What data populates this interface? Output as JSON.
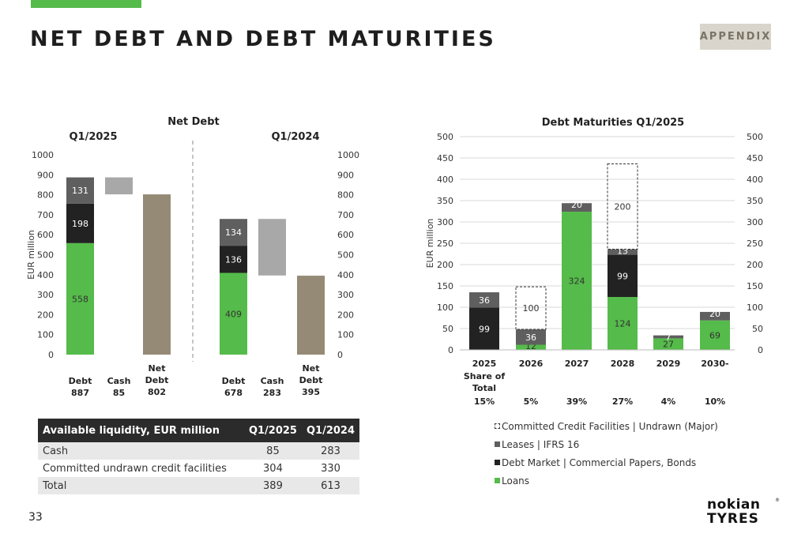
{
  "header": {
    "title": "NET DEBT AND DEBT MATURITIES",
    "badge": "APPENDIX"
  },
  "page_number": "33",
  "colors": {
    "loans": "#55bb4a",
    "debt_market": "#222222",
    "leases": "#5f5f5f",
    "cash": "#a8a8a8",
    "net_debt": "#958a75",
    "accent": "#55bb4a"
  },
  "liquidity_table": {
    "headers": [
      "Available liquidity, EUR million",
      "Q1/2025",
      "Q1/2024"
    ],
    "rows": [
      [
        "Cash",
        "85",
        "283"
      ],
      [
        "Committed undrawn credit facilities",
        "304",
        "330"
      ],
      [
        "Total",
        "389",
        "613"
      ]
    ]
  },
  "legend": [
    {
      "label": "Committed Credit Facilities | Undrawn (Major)",
      "style": "dashed"
    },
    {
      "label": "Leases | IFRS 16",
      "color": "#5f5f5f"
    },
    {
      "label": "Debt Market | Commercial Papers, Bonds",
      "color": "#222222"
    },
    {
      "label": "Loans",
      "color": "#55bb4a"
    }
  ],
  "logo": {
    "line1": "nokian",
    "line2": "TYRES"
  },
  "chart_data": [
    {
      "type": "bar",
      "title": "Net Debt",
      "ylabel": "EUR million",
      "ylim": [
        0,
        1000
      ],
      "yticks": [
        0,
        100,
        200,
        300,
        400,
        500,
        600,
        700,
        800,
        900,
        1000
      ],
      "groups": [
        {
          "name": "Q1/2025",
          "debt": {
            "loans": 558,
            "debt_market": 198,
            "leases": 131
          },
          "cash": 85,
          "net_debt": 802,
          "xlabels": [
            [
              "Debt",
              "887"
            ],
            [
              "Cash",
              "85"
            ],
            [
              "Net",
              "Debt",
              "802"
            ]
          ]
        },
        {
          "name": "Q1/2024",
          "debt": {
            "loans": 409,
            "debt_market": 136,
            "leases": 134
          },
          "cash": 283,
          "net_debt": 395,
          "xlabels": [
            [
              "Debt",
              "678"
            ],
            [
              "Cash",
              "283"
            ],
            [
              "Net",
              "Debt",
              "395"
            ]
          ]
        }
      ]
    },
    {
      "type": "bar",
      "stacked": true,
      "title": "Debt Maturities Q1/2025",
      "ylabel": "EUR million",
      "ylim": [
        0,
        500
      ],
      "yticks": [
        0,
        50,
        100,
        150,
        200,
        250,
        300,
        350,
        400,
        450,
        500
      ],
      "y2ticks": [
        0,
        50,
        100,
        150,
        200,
        250,
        300,
        350,
        400,
        450,
        500
      ],
      "categories": [
        "2025",
        "2026",
        "2027",
        "2028",
        "2029",
        "2030-"
      ],
      "share_label": [
        "Share of",
        "Total"
      ],
      "shares": [
        "15%",
        "5%",
        "39%",
        "27%",
        "4%",
        "10%"
      ],
      "series": [
        {
          "name": "Loans",
          "values": [
            0,
            12,
            324,
            124,
            27,
            69
          ],
          "labels": [
            "",
            "12",
            "324",
            "124",
            "27",
            "69"
          ]
        },
        {
          "name": "Debt Market | Commercial Papers, Bonds",
          "values": [
            99,
            0,
            0,
            99,
            0,
            0
          ],
          "labels": [
            "99",
            "",
            "",
            "99",
            "",
            ""
          ]
        },
        {
          "name": "Leases | IFRS 16",
          "values": [
            36,
            36,
            20,
            13,
            7,
            20
          ],
          "labels": [
            "36",
            "36",
            "20",
            "13",
            "7",
            "20"
          ]
        },
        {
          "name": "Committed Credit Facilities | Undrawn (Major)",
          "values": [
            0,
            100,
            0,
            200,
            0,
            0
          ],
          "labels": [
            "",
            "100",
            "",
            "200",
            "",
            ""
          ]
        }
      ]
    }
  ]
}
